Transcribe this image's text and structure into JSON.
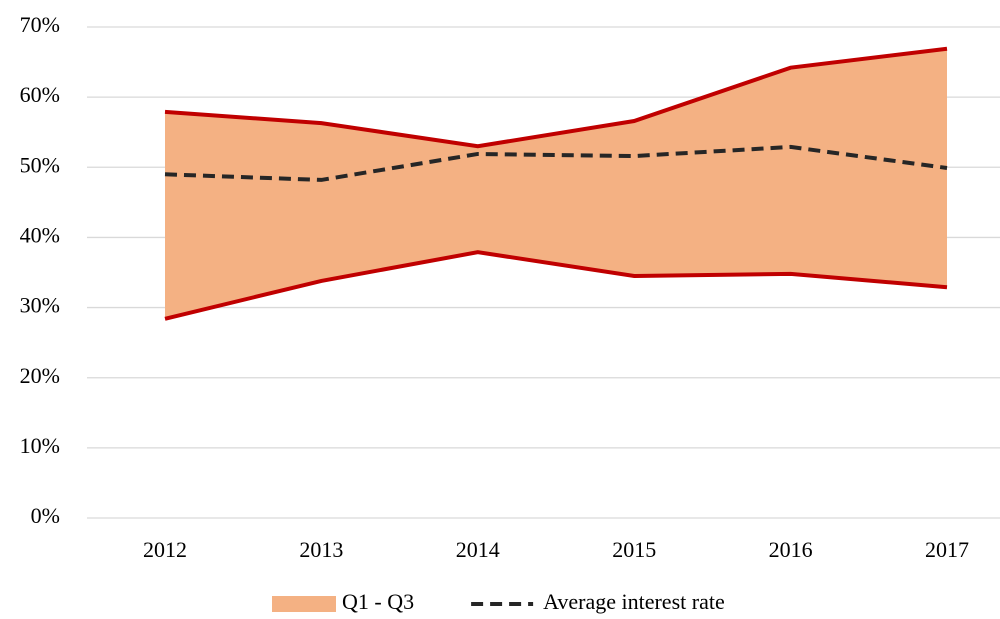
{
  "chart_data": {
    "type": "line",
    "categories": [
      "2012",
      "2013",
      "2014",
      "2015",
      "2016",
      "2017"
    ],
    "ylim": [
      0,
      70
    ],
    "yticks": [
      {
        "value": 0,
        "label": "0%"
      },
      {
        "value": 10,
        "label": "10%"
      },
      {
        "value": 20,
        "label": "20%"
      },
      {
        "value": 30,
        "label": "30%"
      },
      {
        "value": 40,
        "label": "40%"
      },
      {
        "value": 50,
        "label": "50%"
      },
      {
        "value": 60,
        "label": "60%"
      },
      {
        "value": 70,
        "label": "70%"
      }
    ],
    "grid": true,
    "legend": "bottom",
    "series": [
      {
        "name": "Q1 - Q3",
        "kind": "band",
        "color": "#f4b183",
        "edge_color": "#c00000",
        "low": [
          28.4,
          33.8,
          37.9,
          34.5,
          34.8,
          32.9
        ],
        "high": [
          57.9,
          56.3,
          53.0,
          56.6,
          64.2,
          66.9
        ]
      },
      {
        "name": "Average interest rate",
        "kind": "line",
        "color": "#262626",
        "dashed": true,
        "values": [
          49.0,
          48.2,
          51.9,
          51.6,
          52.9,
          49.9
        ]
      }
    ]
  }
}
